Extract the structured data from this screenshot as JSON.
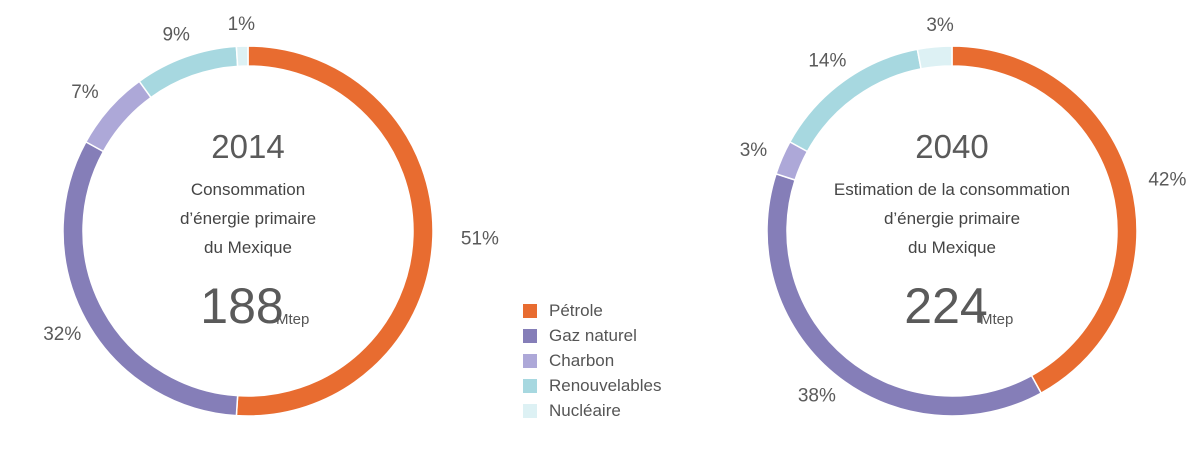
{
  "colors": {
    "petrole": "#e86c30",
    "gaz": "#857eb8",
    "charbon": "#ada8d8",
    "renouvelables": "#a7d8e0",
    "nucleaire": "#ddf1f4"
  },
  "chart_data": [
    {
      "type": "pie",
      "variant": "donut",
      "center_label": "2014",
      "subtitle": [
        "Consommation",
        "d’énergie primaire",
        "du Mexique"
      ],
      "total": "188",
      "unit": "Mtep",
      "slices": [
        {
          "key": "petrole",
          "value": 51,
          "label": "51%"
        },
        {
          "key": "gaz",
          "value": 32,
          "label": "32%"
        },
        {
          "key": "charbon",
          "value": 7,
          "label": "7%"
        },
        {
          "key": "renouvelables",
          "value": 9,
          "label": "9%"
        },
        {
          "key": "nucleaire",
          "value": 1,
          "label": "1%"
        }
      ]
    },
    {
      "type": "pie",
      "variant": "donut",
      "center_label": "2040",
      "subtitle": [
        "Estimation de la consommation",
        "d’énergie primaire",
        "du Mexique"
      ],
      "total": "224",
      "unit": "Mtep",
      "slices": [
        {
          "key": "petrole",
          "value": 42,
          "label": "42%"
        },
        {
          "key": "gaz",
          "value": 38,
          "label": "38%"
        },
        {
          "key": "charbon",
          "value": 3,
          "label": "3%"
        },
        {
          "key": "renouvelables",
          "value": 14,
          "label": "14%"
        },
        {
          "key": "nucleaire",
          "value": 3,
          "label": "3%"
        }
      ]
    }
  ],
  "legend": [
    {
      "key": "petrole",
      "label": "Pétrole"
    },
    {
      "key": "gaz",
      "label": "Gaz naturel"
    },
    {
      "key": "charbon",
      "label": "Charbon"
    },
    {
      "key": "renouvelables",
      "label": "Renouvelables"
    },
    {
      "key": "nucleaire",
      "label": "Nucléaire"
    }
  ]
}
